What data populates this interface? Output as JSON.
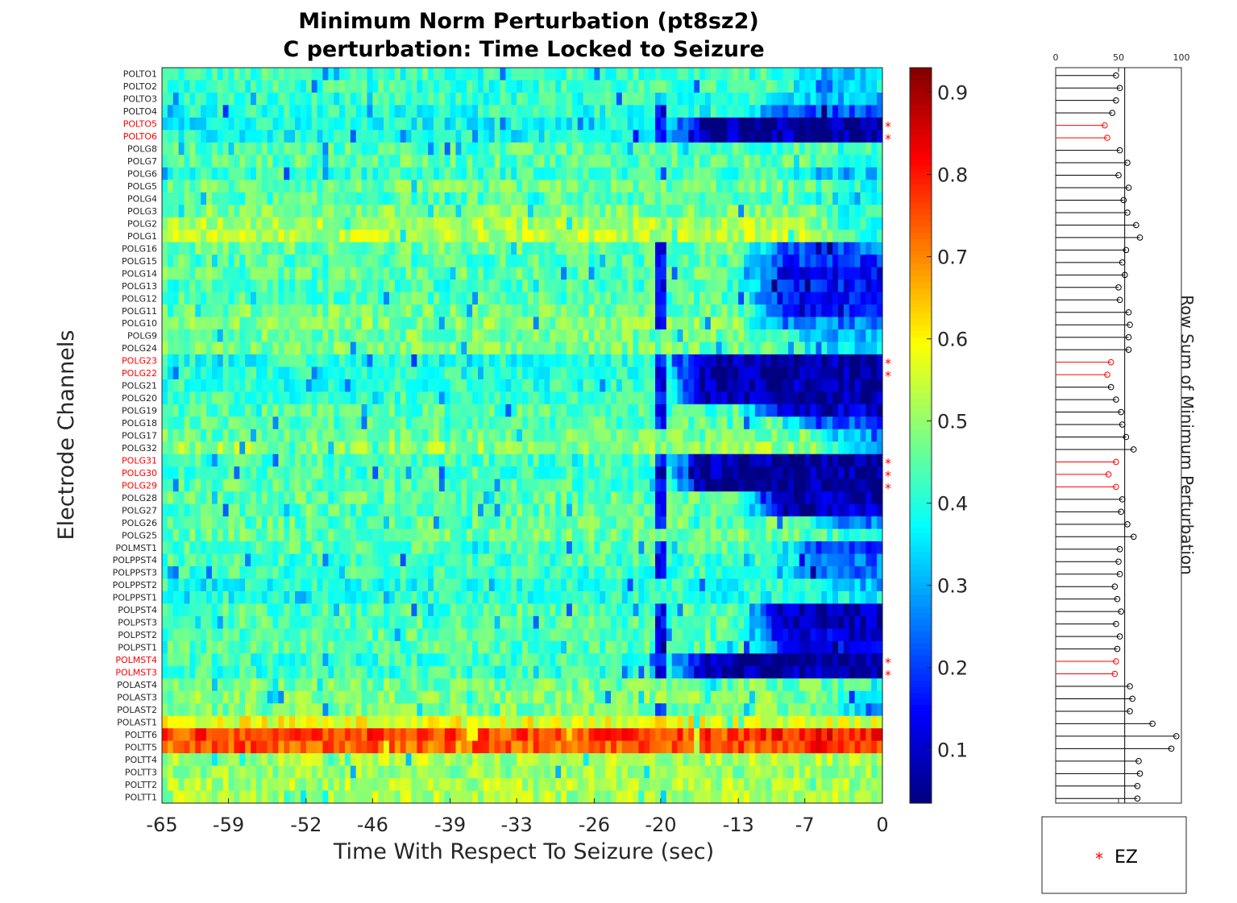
{
  "chart_data": [
    {
      "type": "heatmap",
      "title": [
        "Minimum Norm Perturbation (pt8sz2)",
        "C perturbation:  Time Locked to Seizure"
      ],
      "xlabel": "Time With Respect To Seizure (sec)",
      "ylabel": "Electrode Channels",
      "xlim": [
        -65,
        0
      ],
      "xticks": [
        -65,
        -59,
        -52,
        -46,
        -39,
        -33,
        -26,
        -20,
        -13,
        -7,
        0
      ],
      "channels": [
        "POLTO1",
        "POLTO2",
        "POLTO3",
        "POLTO4",
        "POLTO5",
        "POLTO6",
        "POLG8",
        "POLG7",
        "POLG6",
        "POLG5",
        "POLG4",
        "POLG3",
        "POLG2",
        "POLG1",
        "POLG16",
        "POLG15",
        "POLG14",
        "POLG13",
        "POLG12",
        "POLG11",
        "POLG10",
        "POLG9",
        "POLG24",
        "POLG23",
        "POLG22",
        "POLG21",
        "POLG20",
        "POLG19",
        "POLG18",
        "POLG17",
        "POLG32",
        "POLG31",
        "POLG30",
        "POLG29",
        "POLG28",
        "POLG27",
        "POLG26",
        "POLG25",
        "POLMST1",
        "POLPPST4",
        "POLPPST3",
        "POLPPST2",
        "POLPPST1",
        "POLPST4",
        "POLPST3",
        "POLPST2",
        "POLPST1",
        "POLMST4",
        "POLMST3",
        "POLAST4",
        "POLAST3",
        "POLAST2",
        "POLAST1",
        "POLTT6",
        "POLTT5",
        "POLTT4",
        "POLTT3",
        "POLTT2",
        "POLTT1"
      ],
      "ez_channels": [
        "POLTO5",
        "POLTO6",
        "POLG23",
        "POLG22",
        "POLG31",
        "POLG30",
        "POLG29",
        "POLMST4",
        "POLMST3"
      ],
      "ez_marker": "*",
      "colorbar": {
        "colormap": "jet",
        "range": [
          0.035,
          0.93
        ],
        "ticks": [
          "0.1",
          "0.2",
          "0.3",
          "0.4",
          "0.5",
          "0.6",
          "0.7",
          "0.8",
          "0.9"
        ]
      },
      "row_profiles": {
        "baseline": [
          0.42,
          0.42,
          0.41,
          0.4,
          0.38,
          0.38,
          0.44,
          0.45,
          0.42,
          0.46,
          0.44,
          0.48,
          0.52,
          0.53,
          0.46,
          0.44,
          0.45,
          0.43,
          0.44,
          0.47,
          0.48,
          0.47,
          0.47,
          0.4,
          0.4,
          0.41,
          0.42,
          0.44,
          0.44,
          0.46,
          0.5,
          0.43,
          0.43,
          0.44,
          0.45,
          0.45,
          0.45,
          0.46,
          0.44,
          0.43,
          0.42,
          0.4,
          0.4,
          0.44,
          0.44,
          0.44,
          0.44,
          0.42,
          0.42,
          0.47,
          0.48,
          0.48,
          0.58,
          0.76,
          0.74,
          0.52,
          0.5,
          0.52,
          0.52
        ],
        "late": [
          0.32,
          0.36,
          0.32,
          0.22,
          0.07,
          0.07,
          0.42,
          0.42,
          0.33,
          0.4,
          0.4,
          0.4,
          0.4,
          0.42,
          0.24,
          0.19,
          0.15,
          0.16,
          0.15,
          0.18,
          0.26,
          0.3,
          0.36,
          0.08,
          0.06,
          0.08,
          0.08,
          0.1,
          0.22,
          0.3,
          0.34,
          0.06,
          0.06,
          0.06,
          0.08,
          0.09,
          0.26,
          0.4,
          0.2,
          0.24,
          0.25,
          0.3,
          0.38,
          0.09,
          0.09,
          0.12,
          0.16,
          0.07,
          0.07,
          0.42,
          0.4,
          0.26,
          0.56,
          0.8,
          0.78,
          0.52,
          0.5,
          0.52,
          0.52
        ],
        "onset_sec": [
          -10,
          -10,
          -10,
          -13,
          -20,
          -20,
          -7,
          -7,
          -10,
          -7,
          -7,
          -7,
          -7,
          -7,
          -13,
          -13,
          -13,
          -13,
          -13,
          -13,
          -13,
          -10,
          -10,
          -20,
          -20,
          -20,
          -20,
          -13,
          -10,
          -7,
          -7,
          -20,
          -20,
          -20,
          -13,
          -13,
          -7,
          -7,
          -10,
          -10,
          -10,
          -7,
          -7,
          -13,
          -13,
          -13,
          -13,
          -20,
          -20,
          -7,
          -7,
          -5,
          -13,
          -13,
          -13,
          -7,
          -7,
          -7,
          -7
        ]
      }
    },
    {
      "type": "stem",
      "ylabel": "Row Sum of Minimum Perturbation",
      "xlim": [
        0,
        100
      ],
      "xticks": [
        "0",
        "50",
        "100"
      ],
      "values": [
        48,
        51,
        48,
        45,
        39,
        41,
        51,
        57,
        50,
        58,
        54,
        57,
        64,
        67,
        56,
        53,
        55,
        50,
        51,
        58,
        59,
        58,
        58,
        44,
        41,
        44,
        48,
        52,
        53,
        56,
        62,
        48,
        42,
        48,
        53,
        52,
        57,
        62,
        51,
        50,
        51,
        47,
        49,
        52,
        48,
        51,
        49,
        48,
        47,
        59,
        61,
        59,
        77,
        96,
        92,
        66,
        67,
        65,
        65
      ],
      "red_index_rows": [
        "POLTO5",
        "POLTO6",
        "POLG23",
        "POLG22",
        "POLG31",
        "POLG30",
        "POLG29",
        "POLMST4",
        "POLMST3"
      ]
    }
  ],
  "legend": {
    "marker": "*",
    "label": "EZ"
  },
  "colors": {
    "ez": "#ff0000",
    "stem": "#000000",
    "axis": "#262626"
  }
}
